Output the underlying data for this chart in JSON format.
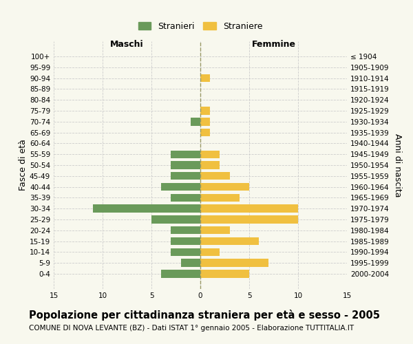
{
  "age_groups": [
    "100+",
    "95-99",
    "90-94",
    "85-89",
    "80-84",
    "75-79",
    "70-74",
    "65-69",
    "60-64",
    "55-59",
    "50-54",
    "45-49",
    "40-44",
    "35-39",
    "30-34",
    "25-29",
    "20-24",
    "15-19",
    "10-14",
    "5-9",
    "0-4"
  ],
  "birth_years": [
    "≤ 1904",
    "1905-1909",
    "1910-1914",
    "1915-1919",
    "1920-1924",
    "1925-1929",
    "1930-1934",
    "1935-1939",
    "1940-1944",
    "1945-1949",
    "1950-1954",
    "1955-1959",
    "1960-1964",
    "1965-1969",
    "1970-1974",
    "1975-1979",
    "1980-1984",
    "1985-1989",
    "1990-1994",
    "1995-1999",
    "2000-2004"
  ],
  "maschi": [
    0,
    0,
    0,
    0,
    0,
    0,
    1,
    0,
    0,
    3,
    3,
    3,
    4,
    3,
    11,
    5,
    3,
    3,
    3,
    2,
    4
  ],
  "femmine": [
    0,
    0,
    1,
    0,
    0,
    1,
    1,
    1,
    0,
    2,
    2,
    3,
    5,
    4,
    10,
    10,
    3,
    6,
    2,
    7,
    5
  ],
  "maschi_color": "#6a9a5a",
  "femmine_color": "#f0c040",
  "bar_height": 0.72,
  "xlim": 15,
  "title": "Popolazione per cittadinanza straniera per età e sesso - 2005",
  "subtitle": "COMUNE DI NOVA LEVANTE (BZ) - Dati ISTAT 1° gennaio 2005 - Elaborazione TUTTITALIA.IT",
  "ylabel_left": "Fasce di età",
  "ylabel_right": "Anni di nascita",
  "xlabel_left": "Maschi",
  "xlabel_right": "Femmine",
  "legend_maschi": "Stranieri",
  "legend_femmine": "Straniere",
  "bg_color": "#f8f8ee",
  "grid_color": "#cccccc",
  "center_line_color": "#999966",
  "title_fontsize": 10.5,
  "subtitle_fontsize": 7.5,
  "axis_label_fontsize": 9,
  "tick_fontsize": 7.5
}
